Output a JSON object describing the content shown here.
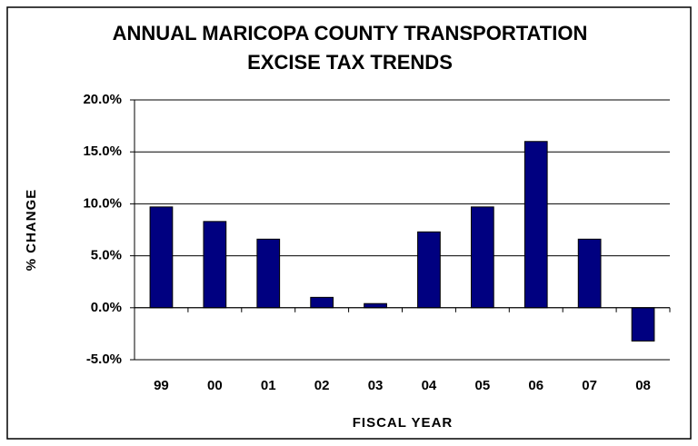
{
  "chart_data": {
    "type": "bar",
    "title": [
      "ANNUAL MARICOPA COUNTY TRANSPORTATION",
      "EXCISE TAX TRENDS"
    ],
    "x_label": "FISCAL YEAR",
    "y_label": "% CHANGE",
    "categories": [
      "99",
      "00",
      "01",
      "02",
      "03",
      "04",
      "05",
      "06",
      "07",
      "08"
    ],
    "values": [
      9.7,
      8.3,
      6.6,
      1.0,
      0.4,
      7.3,
      9.7,
      16.0,
      6.6,
      -3.2
    ],
    "color": "#000080",
    "ylim": [
      -5,
      20
    ],
    "yticks": [
      {
        "value": -5,
        "label": "-5.0%"
      },
      {
        "value": 0,
        "label": "0.0%"
      },
      {
        "value": 5,
        "label": "5.0%"
      },
      {
        "value": 10,
        "label": "10.0%"
      },
      {
        "value": 15,
        "label": "15.0%"
      },
      {
        "value": 20,
        "label": "20.0%"
      }
    ],
    "grid": true
  }
}
